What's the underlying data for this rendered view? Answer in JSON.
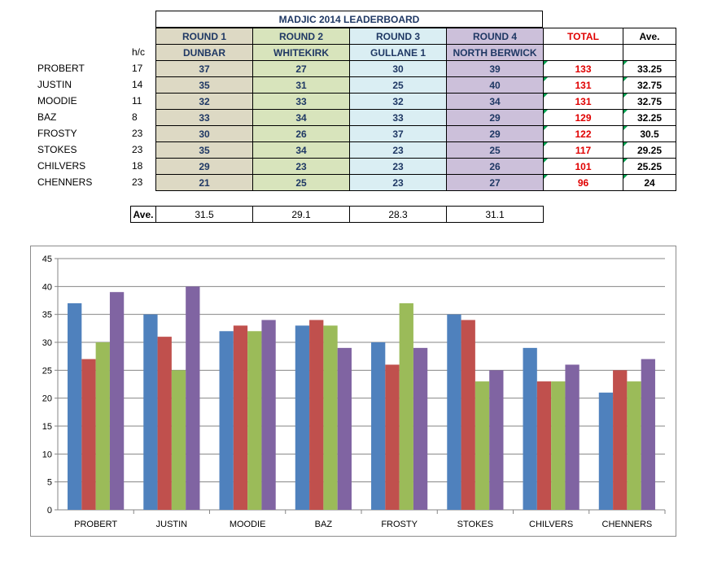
{
  "title": "MADJIC 2014 LEADERBOARD",
  "hc_label": "h/c",
  "rounds": [
    {
      "label": "ROUND 1",
      "course": "DUNBAR"
    },
    {
      "label": "ROUND 2",
      "course": "WHITEKIRK"
    },
    {
      "label": "ROUND 3",
      "course": "GULLANE 1"
    },
    {
      "label": "ROUND 4",
      "course": "NORTH BERWICK"
    }
  ],
  "total_label": "TOTAL",
  "avg_label": "Ave.",
  "players": [
    {
      "name": "PROBERT",
      "hc": "17",
      "scores": [
        "37",
        "27",
        "30",
        "39"
      ],
      "total": "133",
      "avg": "33.25"
    },
    {
      "name": "JUSTIN",
      "hc": "14",
      "scores": [
        "35",
        "31",
        "25",
        "40"
      ],
      "total": "131",
      "avg": "32.75"
    },
    {
      "name": "MOODIE",
      "hc": "11",
      "scores": [
        "32",
        "33",
        "32",
        "34"
      ],
      "total": "131",
      "avg": "32.75"
    },
    {
      "name": "BAZ",
      "hc": "8",
      "scores": [
        "33",
        "34",
        "33",
        "29"
      ],
      "total": "129",
      "avg": "32.25"
    },
    {
      "name": "FROSTY",
      "hc": "23",
      "scores": [
        "30",
        "26",
        "37",
        "29"
      ],
      "total": "122",
      "avg": "30.5"
    },
    {
      "name": "STOKES",
      "hc": "23",
      "scores": [
        "35",
        "34",
        "23",
        "25"
      ],
      "total": "117",
      "avg": "29.25"
    },
    {
      "name": "CHILVERS",
      "hc": "18",
      "scores": [
        "29",
        "23",
        "23",
        "26"
      ],
      "total": "101",
      "avg": "25.25"
    },
    {
      "name": "CHENNERS",
      "hc": "23",
      "scores": [
        "21",
        "25",
        "23",
        "27"
      ],
      "total": "96",
      "avg": "24"
    }
  ],
  "round_averages": [
    "31.5",
    "29.1",
    "28.3",
    "31.1"
  ],
  "colors": {
    "round1_fill": "#ddd9c4",
    "round2_fill": "#d8e4bc",
    "round3_fill": "#daeef3",
    "round4_fill": "#ccc0da",
    "header_text": "#1f3864",
    "total_text": "#e00000"
  },
  "chart_data": {
    "type": "bar",
    "categories": [
      "PROBERT",
      "JUSTIN",
      "MOODIE",
      "BAZ",
      "FROSTY",
      "STOKES",
      "CHILVERS",
      "CHENNERS"
    ],
    "series": [
      {
        "values": [
          37,
          35,
          32,
          33,
          30,
          35,
          29,
          21
        ],
        "color": "#4f81bd"
      },
      {
        "values": [
          27,
          31,
          33,
          34,
          26,
          34,
          23,
          25
        ],
        "color": "#c0504d"
      },
      {
        "values": [
          30,
          25,
          32,
          33,
          37,
          23,
          23,
          23
        ],
        "color": "#9bbb59"
      },
      {
        "values": [
          39,
          40,
          34,
          29,
          29,
          25,
          26,
          27
        ],
        "color": "#8064a2"
      }
    ],
    "ylim": [
      0,
      45
    ],
    "yticks": [
      0,
      5,
      10,
      15,
      20,
      25,
      30,
      35,
      40,
      45
    ],
    "grid": true,
    "legend": "none",
    "title": "",
    "xlabel": "",
    "ylabel": ""
  }
}
